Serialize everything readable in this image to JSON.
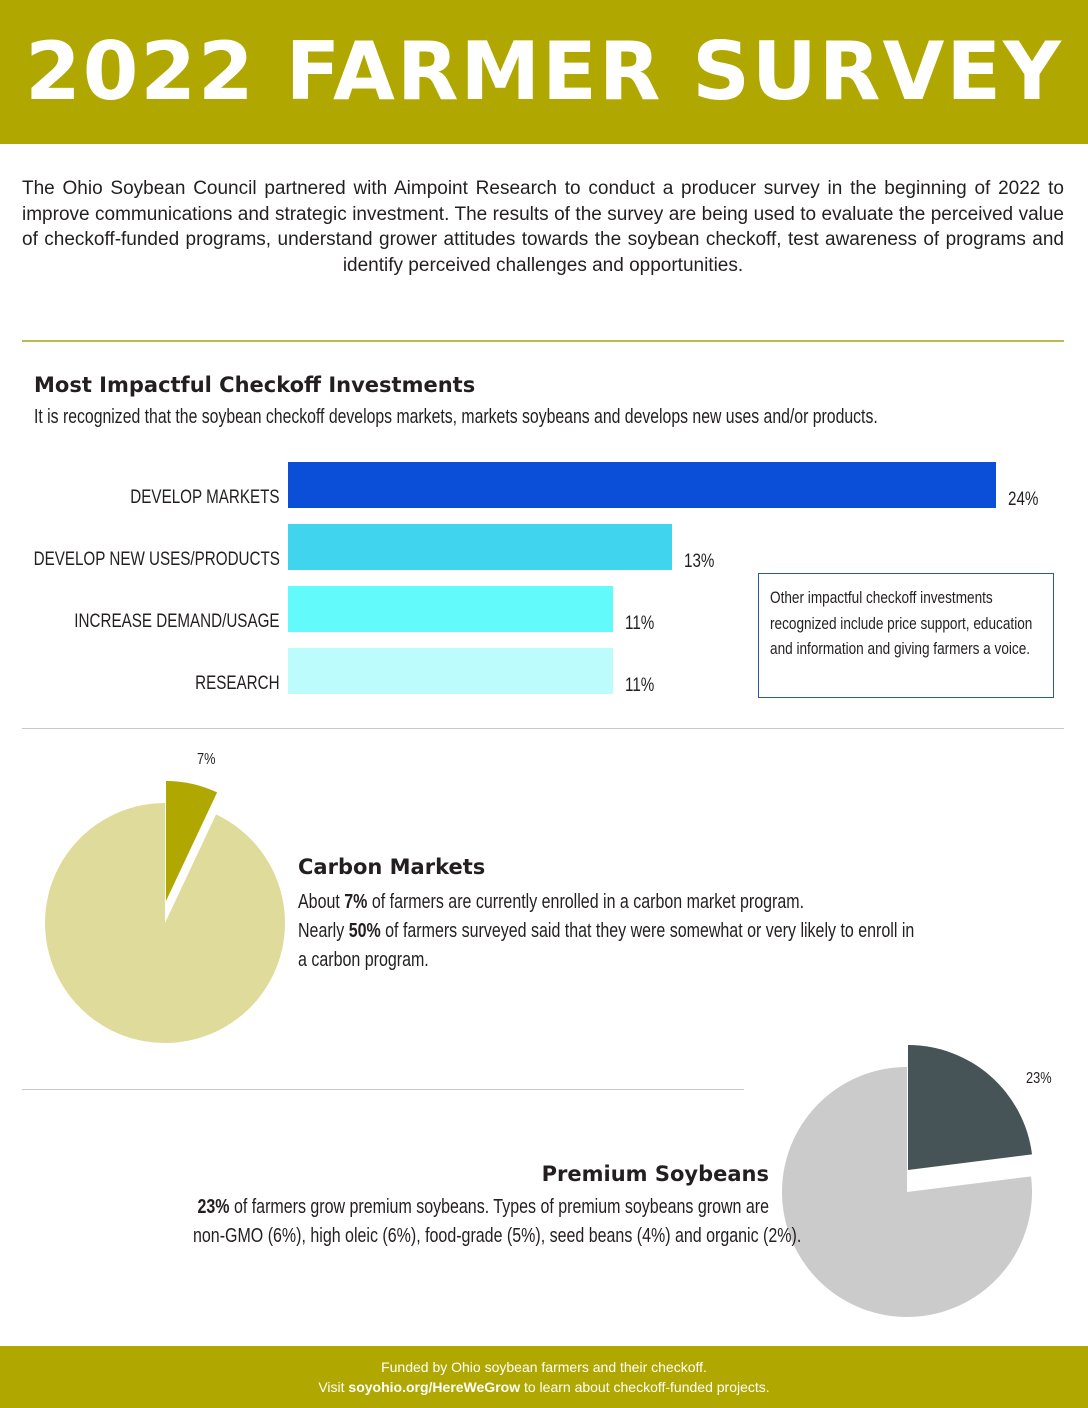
{
  "header": {
    "title": "2022 FARMER SURVEY"
  },
  "intro": {
    "text": "The Ohio Soybean Council partnered with Aimpoint Research to conduct a producer survey in the beginning of 2022 to improve communications and strategic investment. The results of the survey are being used to evaluate the perceived value of checkoff-funded programs, understand grower attitudes towards the soybean checkoff, test awareness of programs and identify perceived challenges and opportunities."
  },
  "investments": {
    "title": "Most Impactful Checkoff Investments",
    "subtitle": "It is recognized that the soybean checkoff develops markets, markets soybeans and develops new uses and/or products.",
    "note": "Other impactful checkoff investments recognized include price support, education and information and giving farmers a voice.",
    "bar_colors": [
      "#0b4fd9",
      "#40d4ee",
      "#62fafa",
      "#bcfcfc"
    ]
  },
  "carbon": {
    "title": "Carbon Markets",
    "line1_pre": "About ",
    "line1_bold": "7%",
    "line1_post": " of farmers are currently enrolled in a carbon market program.",
    "line2_pre": "Nearly ",
    "line2_bold": "50%",
    "line2_post": " of farmers surveyed said that they were somewhat or very likely to enroll in",
    "line3": "a carbon program.",
    "colors": {
      "highlight": "#b0a800",
      "rest": "#dfdb9b"
    }
  },
  "premium": {
    "title": "Premium Soybeans",
    "line1_bold": "23%",
    "line1_post": " of farmers grow premium soybeans. Types of premium soybeans grown are",
    "line2": "non-GMO (6%), high oleic (6%), food-grade (5%), seed beans (4%) and organic (2%).",
    "colors": {
      "highlight": "#465458",
      "rest": "#cbcbcb"
    }
  },
  "footer": {
    "line1": "Funded by Ohio soybean farmers and their checkoff.",
    "line2_pre": "Visit ",
    "line2_link": "soyohio.org/HereWeGrow",
    "line2_post": " to learn about checkoff-funded projects."
  },
  "chart_data": [
    {
      "type": "bar",
      "orientation": "horizontal",
      "categories": [
        "DEVELOP MARKETS",
        "DEVELOP NEW USES/PRODUCTS",
        "INCREASE DEMAND/USAGE",
        "RESEARCH"
      ],
      "values": [
        24,
        13,
        11,
        11
      ],
      "value_labels": [
        "24%",
        "13%",
        "11%",
        "11%"
      ]
    },
    {
      "type": "pie",
      "values": [
        7,
        93
      ],
      "value_labels": [
        "7%"
      ]
    },
    {
      "type": "pie",
      "values": [
        23,
        77
      ],
      "value_labels": [
        "23%"
      ]
    }
  ]
}
